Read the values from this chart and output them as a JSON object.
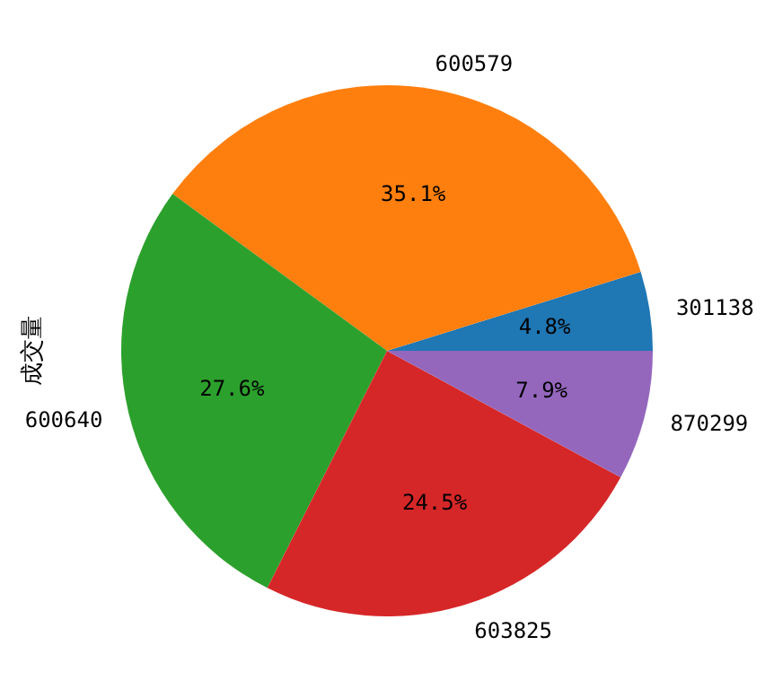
{
  "chart_data": {
    "type": "pie",
    "ylabel": "成交量",
    "categories": [
      "301138",
      "600579",
      "600640",
      "603825",
      "870299"
    ],
    "values": [
      4.8,
      35.1,
      27.6,
      24.5,
      7.9
    ],
    "value_labels": [
      "4.8%",
      "35.1%",
      "27.6%",
      "24.5%",
      "7.9%"
    ],
    "colors": [
      "#1f77b4",
      "#ff7f0e",
      "#2ca02c",
      "#d62728",
      "#9467bd"
    ]
  }
}
